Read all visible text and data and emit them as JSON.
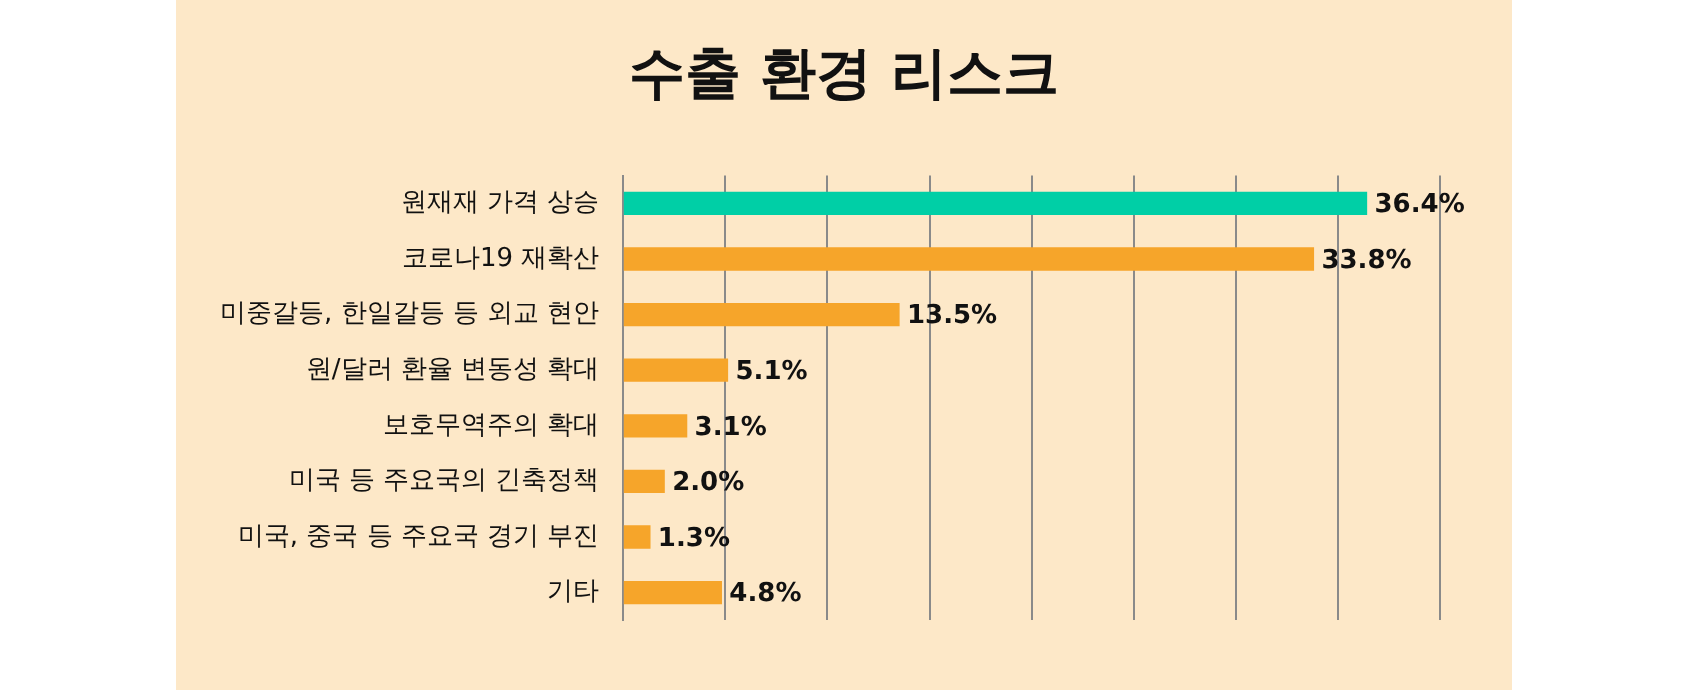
{
  "chart_data": {
    "type": "bar",
    "orientation": "horizontal",
    "title": "수출 환경 리스크",
    "categories": [
      "원재재 가격 상승",
      "코로나19 재확산",
      "미중갈등, 한일갈등 등 외교 현안",
      "원/달러 환율 변동성 확대",
      "보호무역주의 확대",
      "미국 등 주요국의 긴축정책",
      "미국, 중국 등 주요국 경기 부진",
      "기타"
    ],
    "values": [
      36.4,
      33.8,
      13.5,
      5.1,
      3.1,
      2.0,
      1.3,
      4.8
    ],
    "colors": [
      "#00cfa6",
      "#f6a52a",
      "#f6a52a",
      "#f6a52a",
      "#f6a52a",
      "#f6a52a",
      "#f6a52a",
      "#f6a52a"
    ],
    "value_labels": [
      "36.4%",
      "33.8%",
      "13.5%",
      "5.1%",
      "3.1%",
      "2.0%",
      "1.3%",
      "4.8%"
    ],
    "xlim": [
      0,
      40
    ],
    "xticks": [
      {
        "value": 0,
        "label": null
      },
      {
        "value": 5,
        "label": null
      },
      {
        "value": 10,
        "label": null
      },
      {
        "value": 15,
        "label": null
      },
      {
        "value": 20,
        "label": null
      },
      {
        "value": 25,
        "label": null
      },
      {
        "value": 30,
        "label": null
      },
      {
        "value": 35,
        "label": null
      },
      {
        "value": 40,
        "label": null
      }
    ],
    "grid": "x",
    "tick_labels": "y",
    "legend": false
  }
}
